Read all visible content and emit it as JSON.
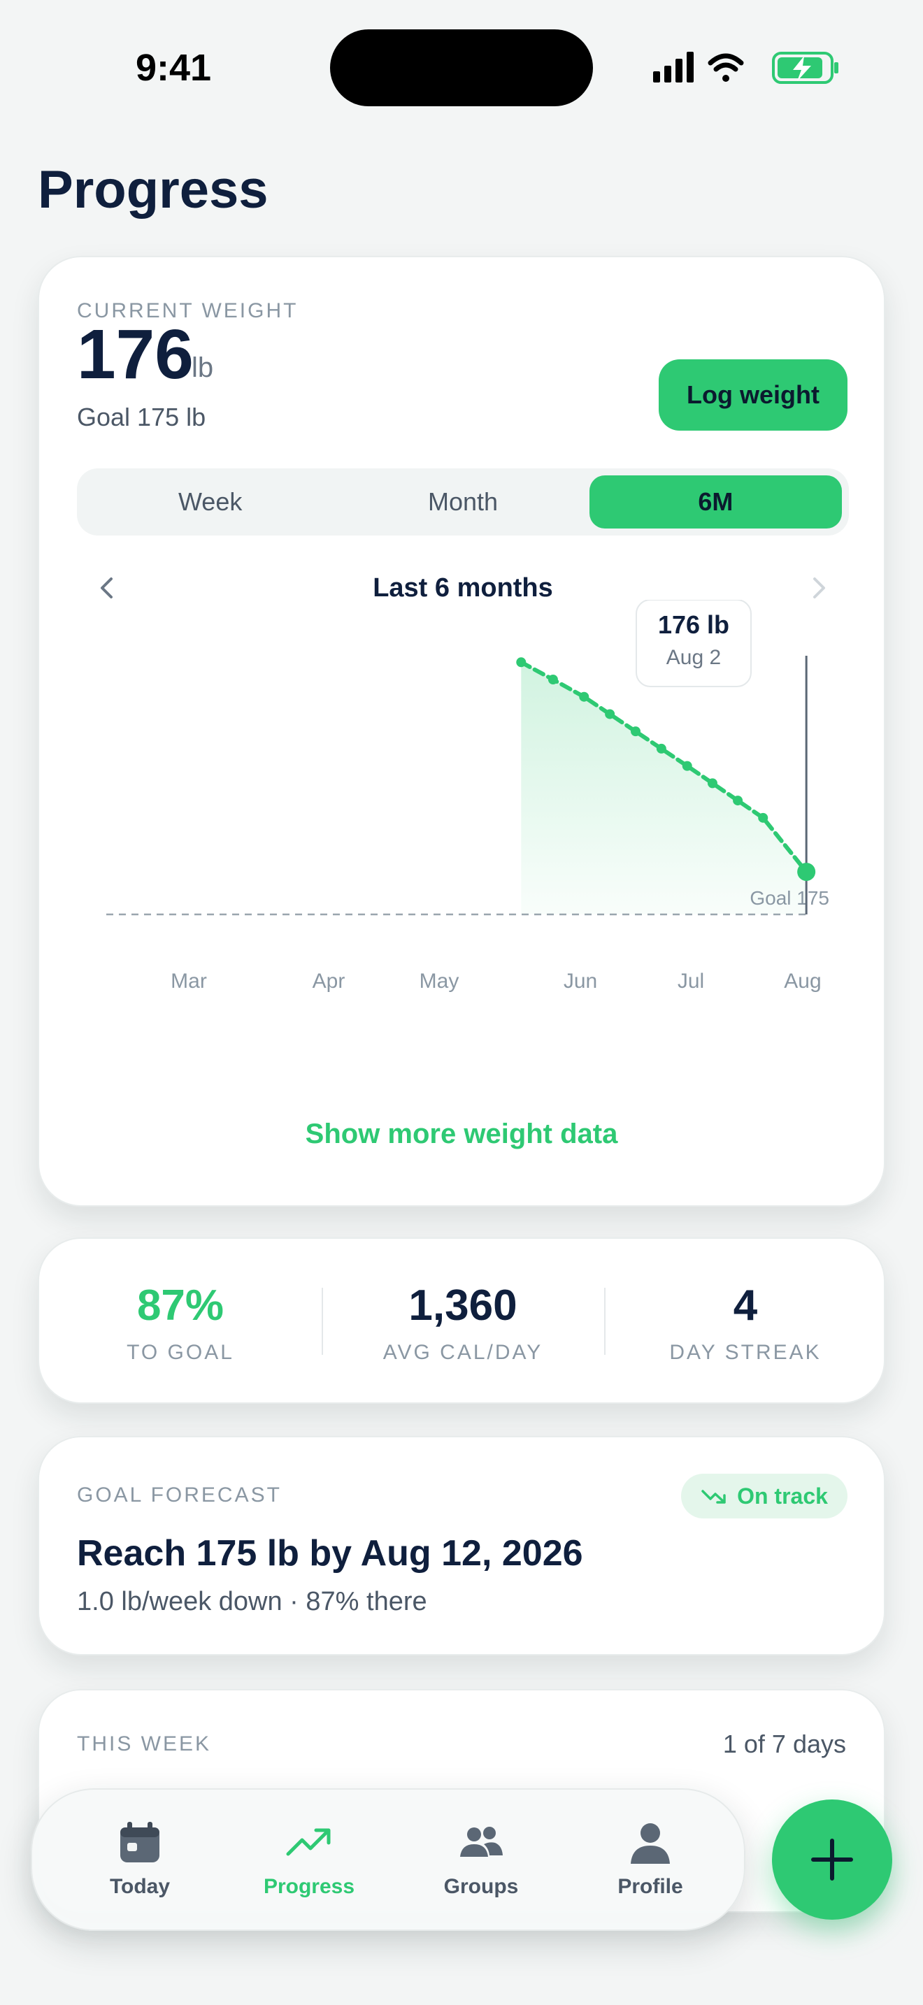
{
  "status": {
    "time": "9:41"
  },
  "page": {
    "title": "Progress"
  },
  "weight_card": {
    "label": "CURRENT WEIGHT",
    "value": "176",
    "unit": "lb",
    "goal": "Goal 175 lb",
    "log_button": "Log weight",
    "segments": [
      "Week",
      "Month",
      "6M"
    ],
    "active_segment": "6M",
    "range_title": "Last 6 months",
    "show_more": "Show more weight data"
  },
  "chart_data": {
    "type": "line",
    "x_ticks": [
      "Mar",
      "Apr",
      "May",
      "Jun",
      "Jul",
      "Aug"
    ],
    "points": [
      {
        "date": "May 19",
        "y": 185.7
      },
      {
        "date": "May 26",
        "y": 184.9
      },
      {
        "date": "Jun 2",
        "y": 184.1
      },
      {
        "date": "Jun 9",
        "y": 183.3
      },
      {
        "date": "Jun 16",
        "y": 182.5
      },
      {
        "date": "Jun 23",
        "y": 181.7
      },
      {
        "date": "Jun 30",
        "y": 180.9
      },
      {
        "date": "Jul 7",
        "y": 180.1
      },
      {
        "date": "Jul 14",
        "y": 179.3
      },
      {
        "date": "Jul 21",
        "y": 178.5
      },
      {
        "date": "Aug 2",
        "y": 176.0
      }
    ],
    "goal_line": 175,
    "goal_label": "Goal 175",
    "tooltip": {
      "value": "176 lb",
      "date": "Aug 2"
    },
    "color": "#2ec973"
  },
  "stats": [
    {
      "value": "87%",
      "label": "TO GOAL"
    },
    {
      "value": "1,360",
      "label": "AVG CAL/DAY"
    },
    {
      "value": "4",
      "label": "DAY STREAK"
    }
  ],
  "forecast": {
    "label": "GOAL FORECAST",
    "badge": "On track",
    "title": "Reach 175 lb by Aug 12, 2026",
    "subtitle": "1.0 lb/week down · 87% there"
  },
  "week": {
    "label": "THIS WEEK",
    "count": "1 of 7 days"
  },
  "tabs": [
    "Today",
    "Progress",
    "Groups",
    "Profile"
  ],
  "colors": {
    "accent": "#2ec973",
    "text": "#0f1f3d",
    "muted": "#8a97a3"
  }
}
